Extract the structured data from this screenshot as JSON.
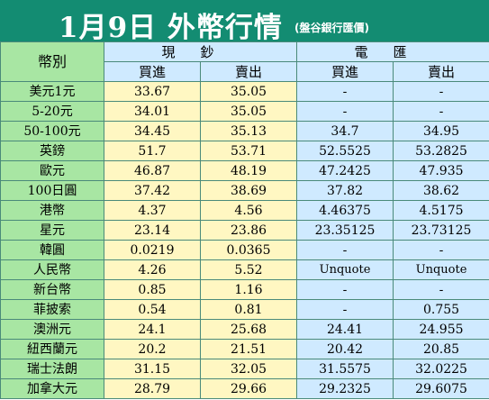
{
  "header": {
    "title": "1月9日 外幣行情",
    "subtitle": "(盤谷銀行匯價)"
  },
  "columns": {
    "currency": "幣別",
    "cash": "現鈔",
    "wire": "電匯",
    "buy": "買進",
    "sell": "賣出"
  },
  "rows": [
    {
      "name": "美元1元",
      "cash_buy": "33.67",
      "cash_sell": "35.05",
      "wire_buy": "-",
      "wire_sell": "-"
    },
    {
      "name": "5-20元",
      "cash_buy": "34.01",
      "cash_sell": "35.05",
      "wire_buy": "-",
      "wire_sell": "-"
    },
    {
      "name": "50-100元",
      "cash_buy": "34.45",
      "cash_sell": "35.13",
      "wire_buy": "34.7",
      "wire_sell": "34.95"
    },
    {
      "name": "英鎊",
      "cash_buy": "51.7",
      "cash_sell": "53.71",
      "wire_buy": "52.5525",
      "wire_sell": "53.2825"
    },
    {
      "name": "歐元",
      "cash_buy": "46.87",
      "cash_sell": "48.19",
      "wire_buy": "47.2425",
      "wire_sell": "47.935"
    },
    {
      "name": "100日圓",
      "cash_buy": "37.42",
      "cash_sell": "38.69",
      "wire_buy": "37.82",
      "wire_sell": "38.62"
    },
    {
      "name": "港幣",
      "cash_buy": "4.37",
      "cash_sell": "4.56",
      "wire_buy": "4.46375",
      "wire_sell": "4.5175"
    },
    {
      "name": "星元",
      "cash_buy": "23.14",
      "cash_sell": "23.86",
      "wire_buy": "23.35125",
      "wire_sell": "23.73125"
    },
    {
      "name": "韓圓",
      "cash_buy": "0.0219",
      "cash_sell": "0.0365",
      "wire_buy": "-",
      "wire_sell": "-"
    },
    {
      "name": "人民幣",
      "cash_buy": "4.26",
      "cash_sell": "5.52",
      "wire_buy": "Unquote",
      "wire_sell": "Unquote"
    },
    {
      "name": "新台幣",
      "cash_buy": "0.85",
      "cash_sell": "1.16",
      "wire_buy": "-",
      "wire_sell": "-"
    },
    {
      "name": "菲披索",
      "cash_buy": "0.54",
      "cash_sell": "0.81",
      "wire_buy": "-",
      "wire_sell": "0.755"
    },
    {
      "name": "澳洲元",
      "cash_buy": "24.1",
      "cash_sell": "25.68",
      "wire_buy": "24.41",
      "wire_sell": "24.955"
    },
    {
      "name": "紐西蘭元",
      "cash_buy": "20.2",
      "cash_sell": "21.51",
      "wire_buy": "20.42",
      "wire_sell": "20.85"
    },
    {
      "name": "瑞士法朗",
      "cash_buy": "31.15",
      "cash_sell": "32.05",
      "wire_buy": "31.5575",
      "wire_sell": "32.0225"
    },
    {
      "name": "加拿大元",
      "cash_buy": "28.79",
      "cash_sell": "29.66",
      "wire_buy": "29.2325",
      "wire_sell": "29.6075"
    }
  ],
  "colors": {
    "title_bg": "#138c72",
    "name_bg": "#a8e6a3",
    "cash_bg": "#fff7c2",
    "wire_bg": "#cfeaff"
  }
}
